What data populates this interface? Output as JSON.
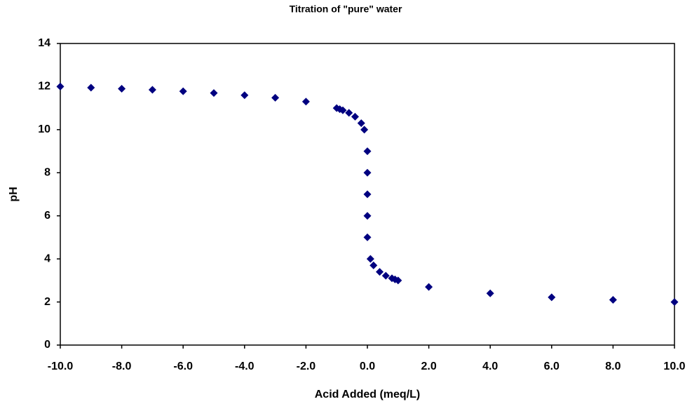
{
  "chart_data": {
    "type": "scatter",
    "title": "Titration of \"pure\" water",
    "x_label": "Acid Added (meq/L)",
    "y_label": "pH",
    "series": [
      {
        "name": "pH",
        "color": "#000080",
        "x": [
          -10,
          -9,
          -8,
          -7,
          -6,
          -5,
          -4,
          -3,
          -2,
          -1,
          -0.9,
          -0.8,
          -0.6,
          -0.4,
          -0.2,
          -0.1,
          0,
          0,
          0,
          0,
          0,
          0.1,
          0.2,
          0.4,
          0.6,
          0.8,
          0.9,
          1,
          2,
          4,
          6,
          8,
          10
        ],
        "values": [
          12,
          11.95,
          11.9,
          11.85,
          11.78,
          11.7,
          11.6,
          11.48,
          11.3,
          11.0,
          10.95,
          10.9,
          10.78,
          10.6,
          10.3,
          10.0,
          9,
          8,
          7,
          6,
          5,
          4.0,
          3.7,
          3.4,
          3.22,
          3.1,
          3.05,
          3.0,
          2.7,
          2.4,
          2.22,
          2.1,
          2.0
        ]
      }
    ],
    "xlim": [
      -10,
      10
    ],
    "xticks": [
      {
        "value": -10,
        "label": "-10.0"
      },
      {
        "value": -8,
        "label": "-8.0"
      },
      {
        "value": -6,
        "label": "-6.0"
      },
      {
        "value": -4,
        "label": "-4.0"
      },
      {
        "value": -2,
        "label": "-2.0"
      },
      {
        "value": 0,
        "label": "0.0"
      },
      {
        "value": 2,
        "label": "2.0"
      },
      {
        "value": 4,
        "label": "4.0"
      },
      {
        "value": 6,
        "label": "6.0"
      },
      {
        "value": 8,
        "label": "8.0"
      },
      {
        "value": 10,
        "label": "10.0"
      }
    ],
    "ylim": [
      0,
      14
    ],
    "yticks": [
      0,
      2,
      4,
      6,
      8,
      10,
      12,
      14
    ],
    "grid": false
  }
}
